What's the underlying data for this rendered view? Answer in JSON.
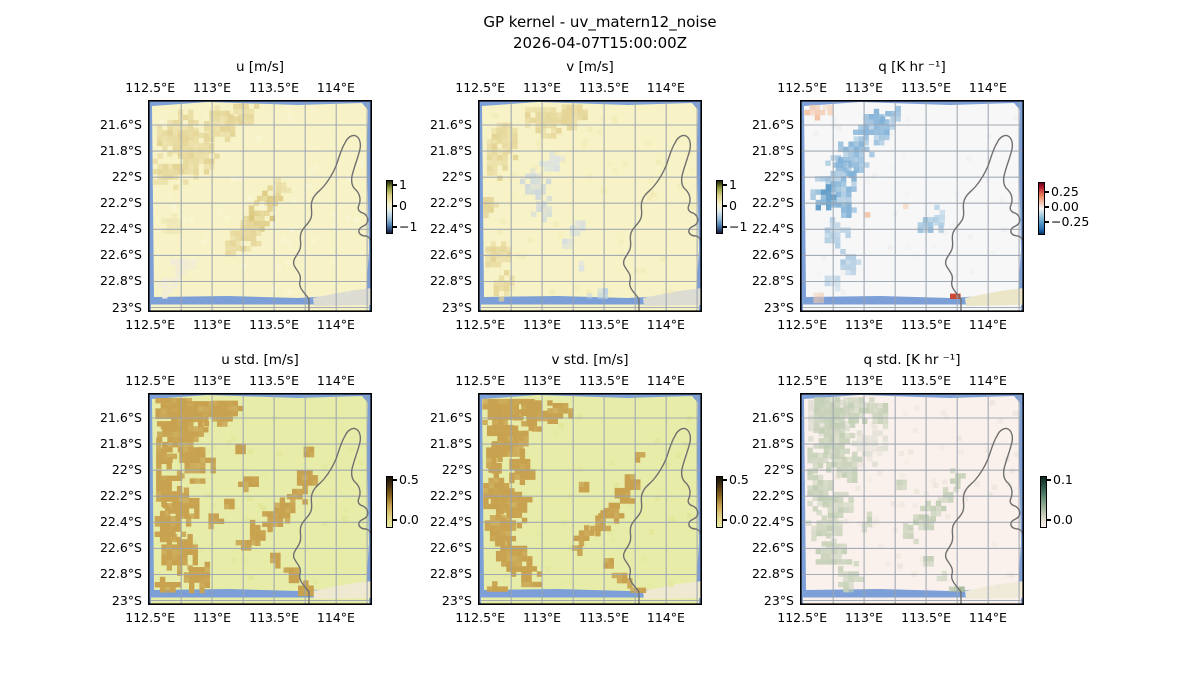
{
  "figure": {
    "title_line1": "GP kernel - uv_matern12_noise",
    "title_line2": "2026-04-07T15:00:00Z",
    "background": "#ffffff"
  },
  "chart_data": {
    "type": "heatmap",
    "title": "GP kernel - uv_matern12_noise",
    "subtitle": "2026-04-07T15:00:00Z",
    "layout": "2 rows x 3 columns of geographic pcolormesh panels, each with its own small vertical colorbar",
    "grid": "on",
    "x_ticks": [
      "112.5°E",
      "113°E",
      "113.5°E",
      "114°E"
    ],
    "y_ticks": [
      "21.6°S",
      "21.8°S",
      "22°S",
      "22.2°S",
      "22.4°S",
      "22.6°S",
      "22.8°S",
      "23°S"
    ],
    "map_extent": {
      "lon": [
        "112.5°E",
        "114°E"
      ],
      "lat": [
        "21.6°S",
        "23°S"
      ],
      "region": "North West Cape / Exmouth coastline with ocean border"
    },
    "ocean_color": "#7b9fd6",
    "coastline_color": "#707070",
    "gridline_color": "#9aa3b0",
    "panels": [
      {
        "id": "u",
        "row": 0,
        "col": 0,
        "title": "u [m/s]",
        "bg": "#f8f3c6",
        "blob": "#e3d394",
        "corner": "#dcdcd2",
        "description": "u wind field: mostly pale yellow (slightly positive), tan patches in NW quadrant and a center-right diagonal band",
        "colorbar": {
          "ticks": [
            "1",
            "0",
            "−1"
          ],
          "vmax": 1,
          "vmin": -1,
          "stops": [
            "#1e2408",
            "#8f9c3f 14%",
            "#ddd389 28%",
            "#f5f2d0 46%",
            "#dfe9ec 58%",
            "#9fc2d8 72%",
            "#4b79ae 86%",
            "#131c36"
          ]
        },
        "mottle": {
          "c": "#fbf7e0",
          "n": 70,
          "o": 0.35
        },
        "blobs": [
          {
            "x": 0.13,
            "y": 0.14,
            "r": 0.1
          },
          {
            "x": 0.21,
            "y": 0.26,
            "r": 0.11
          },
          {
            "x": 0.08,
            "y": 0.34,
            "r": 0.07
          },
          {
            "x": 0.33,
            "y": 0.11,
            "r": 0.09
          },
          {
            "x": 0.43,
            "y": 0.07,
            "r": 0.06
          },
          {
            "x": 0.55,
            "y": 0.47,
            "r": 0.05,
            "c": "#dcc87e"
          },
          {
            "x": 0.5,
            "y": 0.55,
            "r": 0.06,
            "c": "#d9c57b"
          },
          {
            "x": 0.45,
            "y": 0.63,
            "r": 0.07
          },
          {
            "x": 0.38,
            "y": 0.7,
            "r": 0.045
          },
          {
            "x": 0.6,
            "y": 0.42,
            "r": 0.04
          },
          {
            "x": 0.1,
            "y": 0.6,
            "r": 0.05,
            "c": "#efe8b6",
            "o": 0.5
          },
          {
            "x": 0.15,
            "y": 0.78,
            "r": 0.06,
            "c": "#f0ead8",
            "o": 0.5
          },
          {
            "x": 0.08,
            "y": 0.88,
            "r": 0.05,
            "c": "#f2ecda",
            "o": 0.5
          }
        ]
      },
      {
        "id": "v",
        "row": 0,
        "col": 1,
        "title": "v [m/s]",
        "bg": "#f8f3c6",
        "blob": "#e3d394",
        "corner": "#dcdcd2",
        "description": "v wind field: pale yellow with tan patches along west edge and top, faint blue-gray patches mid-left",
        "colorbar": {
          "ticks": [
            "1",
            "0",
            "−1"
          ],
          "vmax": 1,
          "vmin": -1,
          "stops": [
            "#1e2408",
            "#8f9c3f 14%",
            "#ddd389 28%",
            "#f5f2d0 46%",
            "#dfe9ec 58%",
            "#9fc2d8 72%",
            "#4b79ae 86%",
            "#131c36"
          ]
        },
        "mottle": {
          "c": "#efe7ae",
          "n": 60,
          "o": 0.35
        },
        "blobs": [
          {
            "x": 0.06,
            "y": 0.28,
            "r": 0.1
          },
          {
            "x": 0.12,
            "y": 0.17,
            "r": 0.07
          },
          {
            "x": 0.3,
            "y": 0.08,
            "r": 0.1
          },
          {
            "x": 0.41,
            "y": 0.06,
            "r": 0.07
          },
          {
            "x": 0.04,
            "y": 0.5,
            "r": 0.05
          },
          {
            "x": 0.07,
            "y": 0.73,
            "r": 0.07
          },
          {
            "x": 0.12,
            "y": 0.88,
            "r": 0.06
          },
          {
            "x": 0.26,
            "y": 0.4,
            "r": 0.06,
            "c": "#ccd7dd"
          },
          {
            "x": 0.3,
            "y": 0.52,
            "r": 0.05,
            "c": "#ccd7dd"
          },
          {
            "x": 0.33,
            "y": 0.3,
            "r": 0.045,
            "c": "#d8e0e4"
          },
          {
            "x": 0.44,
            "y": 0.6,
            "r": 0.04,
            "c": "#d4dde1"
          },
          {
            "x": 0.4,
            "y": 0.68,
            "r": 0.035,
            "c": "#d4dde1"
          },
          {
            "x": 0.47,
            "y": 0.78,
            "r": 0.03,
            "c": "#dbe2e5"
          },
          {
            "x": 0.55,
            "y": 0.93,
            "r": 0.05,
            "c": "#bcd2e4"
          }
        ]
      },
      {
        "id": "q",
        "row": 0,
        "col": 2,
        "title": "q [K hr ⁻¹]",
        "bg": "#f7f7f7",
        "blob": "#7fb0d6",
        "corner": "#ebe6c8",
        "description": "q heating field: near-white background, blue (negative) diagonal band upper-left and patch center-right, strong red (positive) spot at bottom near coast, faint orange top-left corner",
        "colorbar": {
          "ticks": [
            "0.25",
            "0.00",
            "−0.25"
          ],
          "vmax": 0.25,
          "vmin": -0.25,
          "stops": [
            "#67001f",
            "#b2182b 8%",
            "#ef8a62 26%",
            "#f7f7f7 50%",
            "#67a9cf 74%",
            "#2166ac 92%",
            "#053061"
          ]
        },
        "mottle": {
          "c": "#ebebeb",
          "n": 40,
          "o": 0.35
        },
        "blobs": [
          {
            "x": 0.17,
            "y": 0.37,
            "r": 0.09
          },
          {
            "x": 0.24,
            "y": 0.27,
            "r": 0.08
          },
          {
            "x": 0.33,
            "y": 0.14,
            "r": 0.08
          },
          {
            "x": 0.42,
            "y": 0.07,
            "r": 0.05
          },
          {
            "x": 0.12,
            "y": 0.45,
            "r": 0.06,
            "c": "#5d9bc8"
          },
          {
            "x": 0.2,
            "y": 0.5,
            "r": 0.05
          },
          {
            "x": 0.16,
            "y": 0.63,
            "r": 0.06,
            "c": "#a6c7e0"
          },
          {
            "x": 0.22,
            "y": 0.77,
            "r": 0.05,
            "c": "#a6c7e0"
          },
          {
            "x": 0.14,
            "y": 0.86,
            "r": 0.04,
            "c": "#bed5e8"
          },
          {
            "x": 0.57,
            "y": 0.6,
            "r": 0.055,
            "c": "#90bcda"
          },
          {
            "x": 0.63,
            "y": 0.55,
            "r": 0.04,
            "c": "#b8d4e6"
          },
          {
            "x": 0.06,
            "y": 0.04,
            "r": 0.05,
            "c": "#f2c0a0"
          },
          {
            "x": 0.13,
            "y": 0.03,
            "r": 0.04,
            "c": "#f6d4bc"
          },
          {
            "x": 0.3,
            "y": 0.54,
            "r": 0.02,
            "c": "#eeb088"
          },
          {
            "x": 0.47,
            "y": 0.5,
            "r": 0.02,
            "c": "#f6d8c4"
          },
          {
            "x": 0.08,
            "y": 0.93,
            "r": 0.03,
            "c": "#f0c8b0"
          },
          {
            "x": 0.695,
            "y": 0.94,
            "r": 0.035,
            "c": "#cc4733",
            "o": 0.85
          },
          {
            "x": 0.72,
            "y": 0.975,
            "r": 0.04,
            "c": "#c03a28",
            "o": 0.9
          },
          {
            "x": 0.66,
            "y": 0.96,
            "r": 0.03,
            "c": "#e07a58",
            "o": 0.8
          }
        ]
      },
      {
        "id": "u_std",
        "row": 1,
        "col": 0,
        "title": "u std. [m/s]",
        "bg": "#e7eda9",
        "blob": "#c8a24f",
        "corner": "#eee9d0",
        "o": 0.8,
        "description": "u posterior std: yellow-green background (low), large dark-khaki blobs (higher std) in NW cluster, west column and center-right diagonal band",
        "colorbar": {
          "ticks": [
            "0.5",
            "0.0"
          ],
          "vmax": 0.5,
          "vmin": 0.0,
          "stops": [
            "#140f08",
            "#4a3413 18%",
            "#8a661f 38%",
            "#c9a452 58%",
            "#dfd083 78%",
            "#e9eda6"
          ]
        },
        "mottle": {
          "c": "#dfe493",
          "n": 40,
          "o": 0.4
        },
        "blobs": [
          {
            "x": 0.1,
            "y": 0.07,
            "r": 0.1
          },
          {
            "x": 0.22,
            "y": 0.06,
            "r": 0.1
          },
          {
            "x": 0.35,
            "y": 0.08,
            "r": 0.075
          },
          {
            "x": 0.15,
            "y": 0.2,
            "r": 0.12
          },
          {
            "x": 0.05,
            "y": 0.3,
            "r": 0.07
          },
          {
            "x": 0.21,
            "y": 0.33,
            "r": 0.08
          },
          {
            "x": 0.07,
            "y": 0.45,
            "r": 0.09
          },
          {
            "x": 0.16,
            "y": 0.52,
            "r": 0.08
          },
          {
            "x": 0.1,
            "y": 0.63,
            "r": 0.08
          },
          {
            "x": 0.14,
            "y": 0.75,
            "r": 0.09
          },
          {
            "x": 0.22,
            "y": 0.86,
            "r": 0.07
          },
          {
            "x": 0.08,
            "y": 0.92,
            "r": 0.06
          },
          {
            "x": 0.3,
            "y": 0.6,
            "r": 0.04
          },
          {
            "x": 0.36,
            "y": 0.52,
            "r": 0.03
          },
          {
            "x": 0.45,
            "y": 0.42,
            "r": 0.035
          },
          {
            "x": 0.41,
            "y": 0.26,
            "r": 0.03
          },
          {
            "x": 0.72,
            "y": 0.28,
            "r": 0.035
          },
          {
            "x": 0.7,
            "y": 0.4,
            "r": 0.045
          },
          {
            "x": 0.66,
            "y": 0.47,
            "r": 0.05
          },
          {
            "x": 0.61,
            "y": 0.54,
            "r": 0.055
          },
          {
            "x": 0.55,
            "y": 0.6,
            "r": 0.05
          },
          {
            "x": 0.49,
            "y": 0.66,
            "r": 0.045
          },
          {
            "x": 0.44,
            "y": 0.72,
            "r": 0.035
          },
          {
            "x": 0.57,
            "y": 0.78,
            "r": 0.035
          },
          {
            "x": 0.64,
            "y": 0.86,
            "r": 0.045
          },
          {
            "x": 0.7,
            "y": 0.94,
            "r": 0.04
          }
        ]
      },
      {
        "id": "v_std",
        "row": 1,
        "col": 1,
        "title": "v std. [m/s]",
        "bg": "#e7eda9",
        "blob": "#c8a24f",
        "corner": "#eee9d0",
        "o": 0.8,
        "description": "v posterior std: same palette and blob pattern as u std with slight variations",
        "colorbar": {
          "ticks": [
            "0.5",
            "0.0"
          ],
          "vmax": 0.5,
          "vmin": 0.0,
          "stops": [
            "#140f08",
            "#4a3413 18%",
            "#8a661f 38%",
            "#c9a452 58%",
            "#dfd083 78%",
            "#e9eda6"
          ]
        },
        "mottle": {
          "c": "#dfe493",
          "n": 40,
          "o": 0.4
        },
        "blobs": [
          {
            "x": 0.12,
            "y": 0.06,
            "r": 0.11
          },
          {
            "x": 0.25,
            "y": 0.07,
            "r": 0.09
          },
          {
            "x": 0.36,
            "y": 0.1,
            "r": 0.06
          },
          {
            "x": 0.14,
            "y": 0.21,
            "r": 0.11
          },
          {
            "x": 0.05,
            "y": 0.32,
            "r": 0.07
          },
          {
            "x": 0.2,
            "y": 0.35,
            "r": 0.07
          },
          {
            "x": 0.08,
            "y": 0.46,
            "r": 0.09
          },
          {
            "x": 0.15,
            "y": 0.54,
            "r": 0.08
          },
          {
            "x": 0.1,
            "y": 0.65,
            "r": 0.08
          },
          {
            "x": 0.15,
            "y": 0.77,
            "r": 0.08
          },
          {
            "x": 0.22,
            "y": 0.87,
            "r": 0.06
          },
          {
            "x": 0.08,
            "y": 0.93,
            "r": 0.05
          },
          {
            "x": 0.47,
            "y": 0.44,
            "r": 0.03
          },
          {
            "x": 0.72,
            "y": 0.3,
            "r": 0.03
          },
          {
            "x": 0.69,
            "y": 0.42,
            "r": 0.045
          },
          {
            "x": 0.65,
            "y": 0.49,
            "r": 0.05
          },
          {
            "x": 0.6,
            "y": 0.56,
            "r": 0.05
          },
          {
            "x": 0.54,
            "y": 0.62,
            "r": 0.05
          },
          {
            "x": 0.48,
            "y": 0.68,
            "r": 0.04
          },
          {
            "x": 0.44,
            "y": 0.74,
            "r": 0.03
          },
          {
            "x": 0.58,
            "y": 0.8,
            "r": 0.03
          },
          {
            "x": 0.65,
            "y": 0.88,
            "r": 0.04
          },
          {
            "x": 0.71,
            "y": 0.95,
            "r": 0.04
          }
        ]
      },
      {
        "id": "q_std",
        "row": 1,
        "col": 2,
        "title": "q std. [K hr ⁻¹]",
        "bg": "#fbf1ec",
        "blob": "#c3cfb5",
        "corner": "#f0ead9",
        "o": 0.5,
        "description": "q posterior std: very pale pink background with faint sage-green patches mirroring the u/v std blob pattern",
        "colorbar": {
          "ticks": [
            "0.1",
            "0.0"
          ],
          "vmax": 0.1,
          "vmin": 0.0,
          "stops": [
            "#0c2622",
            "#2f5e4e 22%",
            "#6f957f 45%",
            "#b0bfa6 68%",
            "#e3ded2 86%",
            "#fbf1ec"
          ]
        },
        "mottle": {
          "c": "#e4e0d6",
          "n": 70,
          "o": 0.4
        },
        "blobs": [
          {
            "x": 0.1,
            "y": 0.1,
            "r": 0.12,
            "c": "#d6d8cc",
            "o": 0.4
          },
          {
            "x": 0.3,
            "y": 0.25,
            "r": 0.08,
            "c": "#dadcd0",
            "o": 0.35
          },
          {
            "x": 0.12,
            "y": 0.08,
            "r": 0.09
          },
          {
            "x": 0.24,
            "y": 0.07,
            "r": 0.08
          },
          {
            "x": 0.35,
            "y": 0.1,
            "r": 0.06
          },
          {
            "x": 0.15,
            "y": 0.21,
            "r": 0.1
          },
          {
            "x": 0.06,
            "y": 0.31,
            "r": 0.06
          },
          {
            "x": 0.2,
            "y": 0.34,
            "r": 0.07
          },
          {
            "x": 0.08,
            "y": 0.46,
            "r": 0.08
          },
          {
            "x": 0.16,
            "y": 0.53,
            "r": 0.07
          },
          {
            "x": 0.11,
            "y": 0.64,
            "r": 0.07
          },
          {
            "x": 0.14,
            "y": 0.76,
            "r": 0.08
          },
          {
            "x": 0.22,
            "y": 0.87,
            "r": 0.06
          },
          {
            "x": 0.3,
            "y": 0.61,
            "r": 0.035
          },
          {
            "x": 0.45,
            "y": 0.43,
            "r": 0.03
          },
          {
            "x": 0.7,
            "y": 0.41,
            "r": 0.04
          },
          {
            "x": 0.65,
            "y": 0.48,
            "r": 0.045
          },
          {
            "x": 0.6,
            "y": 0.55,
            "r": 0.05
          },
          {
            "x": 0.54,
            "y": 0.61,
            "r": 0.045
          },
          {
            "x": 0.49,
            "y": 0.67,
            "r": 0.04
          },
          {
            "x": 0.57,
            "y": 0.79,
            "r": 0.03
          },
          {
            "x": 0.64,
            "y": 0.87,
            "r": 0.04
          },
          {
            "x": 0.7,
            "y": 0.95,
            "r": 0.045,
            "c": "#a8bb9a"
          }
        ]
      }
    ]
  }
}
